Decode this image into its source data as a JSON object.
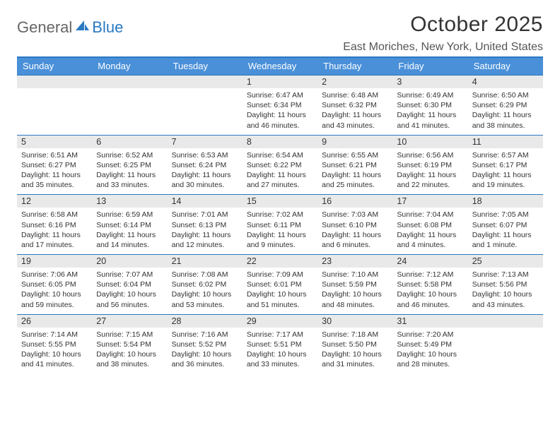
{
  "logo": {
    "gen": "General",
    "blue": "Blue",
    "mark_color": "#2a79c3"
  },
  "title": "October 2025",
  "location": "East Moriches, New York, United States",
  "colors": {
    "header_bar": "#4a90d9",
    "header_text": "#ffffff",
    "daynum_bg": "#e9e9e9",
    "rule": "#2a79c3",
    "body_text": "#333333"
  },
  "dow": [
    "Sunday",
    "Monday",
    "Tuesday",
    "Wednesday",
    "Thursday",
    "Friday",
    "Saturday"
  ],
  "weeks": [
    [
      {
        "n": "",
        "sr": "",
        "ss": "",
        "dl": ""
      },
      {
        "n": "",
        "sr": "",
        "ss": "",
        "dl": ""
      },
      {
        "n": "",
        "sr": "",
        "ss": "",
        "dl": ""
      },
      {
        "n": "1",
        "sr": "Sunrise: 6:47 AM",
        "ss": "Sunset: 6:34 PM",
        "dl": "Daylight: 11 hours and 46 minutes."
      },
      {
        "n": "2",
        "sr": "Sunrise: 6:48 AM",
        "ss": "Sunset: 6:32 PM",
        "dl": "Daylight: 11 hours and 43 minutes."
      },
      {
        "n": "3",
        "sr": "Sunrise: 6:49 AM",
        "ss": "Sunset: 6:30 PM",
        "dl": "Daylight: 11 hours and 41 minutes."
      },
      {
        "n": "4",
        "sr": "Sunrise: 6:50 AM",
        "ss": "Sunset: 6:29 PM",
        "dl": "Daylight: 11 hours and 38 minutes."
      }
    ],
    [
      {
        "n": "5",
        "sr": "Sunrise: 6:51 AM",
        "ss": "Sunset: 6:27 PM",
        "dl": "Daylight: 11 hours and 35 minutes."
      },
      {
        "n": "6",
        "sr": "Sunrise: 6:52 AM",
        "ss": "Sunset: 6:25 PM",
        "dl": "Daylight: 11 hours and 33 minutes."
      },
      {
        "n": "7",
        "sr": "Sunrise: 6:53 AM",
        "ss": "Sunset: 6:24 PM",
        "dl": "Daylight: 11 hours and 30 minutes."
      },
      {
        "n": "8",
        "sr": "Sunrise: 6:54 AM",
        "ss": "Sunset: 6:22 PM",
        "dl": "Daylight: 11 hours and 27 minutes."
      },
      {
        "n": "9",
        "sr": "Sunrise: 6:55 AM",
        "ss": "Sunset: 6:21 PM",
        "dl": "Daylight: 11 hours and 25 minutes."
      },
      {
        "n": "10",
        "sr": "Sunrise: 6:56 AM",
        "ss": "Sunset: 6:19 PM",
        "dl": "Daylight: 11 hours and 22 minutes."
      },
      {
        "n": "11",
        "sr": "Sunrise: 6:57 AM",
        "ss": "Sunset: 6:17 PM",
        "dl": "Daylight: 11 hours and 19 minutes."
      }
    ],
    [
      {
        "n": "12",
        "sr": "Sunrise: 6:58 AM",
        "ss": "Sunset: 6:16 PM",
        "dl": "Daylight: 11 hours and 17 minutes."
      },
      {
        "n": "13",
        "sr": "Sunrise: 6:59 AM",
        "ss": "Sunset: 6:14 PM",
        "dl": "Daylight: 11 hours and 14 minutes."
      },
      {
        "n": "14",
        "sr": "Sunrise: 7:01 AM",
        "ss": "Sunset: 6:13 PM",
        "dl": "Daylight: 11 hours and 12 minutes."
      },
      {
        "n": "15",
        "sr": "Sunrise: 7:02 AM",
        "ss": "Sunset: 6:11 PM",
        "dl": "Daylight: 11 hours and 9 minutes."
      },
      {
        "n": "16",
        "sr": "Sunrise: 7:03 AM",
        "ss": "Sunset: 6:10 PM",
        "dl": "Daylight: 11 hours and 6 minutes."
      },
      {
        "n": "17",
        "sr": "Sunrise: 7:04 AM",
        "ss": "Sunset: 6:08 PM",
        "dl": "Daylight: 11 hours and 4 minutes."
      },
      {
        "n": "18",
        "sr": "Sunrise: 7:05 AM",
        "ss": "Sunset: 6:07 PM",
        "dl": "Daylight: 11 hours and 1 minute."
      }
    ],
    [
      {
        "n": "19",
        "sr": "Sunrise: 7:06 AM",
        "ss": "Sunset: 6:05 PM",
        "dl": "Daylight: 10 hours and 59 minutes."
      },
      {
        "n": "20",
        "sr": "Sunrise: 7:07 AM",
        "ss": "Sunset: 6:04 PM",
        "dl": "Daylight: 10 hours and 56 minutes."
      },
      {
        "n": "21",
        "sr": "Sunrise: 7:08 AM",
        "ss": "Sunset: 6:02 PM",
        "dl": "Daylight: 10 hours and 53 minutes."
      },
      {
        "n": "22",
        "sr": "Sunrise: 7:09 AM",
        "ss": "Sunset: 6:01 PM",
        "dl": "Daylight: 10 hours and 51 minutes."
      },
      {
        "n": "23",
        "sr": "Sunrise: 7:10 AM",
        "ss": "Sunset: 5:59 PM",
        "dl": "Daylight: 10 hours and 48 minutes."
      },
      {
        "n": "24",
        "sr": "Sunrise: 7:12 AM",
        "ss": "Sunset: 5:58 PM",
        "dl": "Daylight: 10 hours and 46 minutes."
      },
      {
        "n": "25",
        "sr": "Sunrise: 7:13 AM",
        "ss": "Sunset: 5:56 PM",
        "dl": "Daylight: 10 hours and 43 minutes."
      }
    ],
    [
      {
        "n": "26",
        "sr": "Sunrise: 7:14 AM",
        "ss": "Sunset: 5:55 PM",
        "dl": "Daylight: 10 hours and 41 minutes."
      },
      {
        "n": "27",
        "sr": "Sunrise: 7:15 AM",
        "ss": "Sunset: 5:54 PM",
        "dl": "Daylight: 10 hours and 38 minutes."
      },
      {
        "n": "28",
        "sr": "Sunrise: 7:16 AM",
        "ss": "Sunset: 5:52 PM",
        "dl": "Daylight: 10 hours and 36 minutes."
      },
      {
        "n": "29",
        "sr": "Sunrise: 7:17 AM",
        "ss": "Sunset: 5:51 PM",
        "dl": "Daylight: 10 hours and 33 minutes."
      },
      {
        "n": "30",
        "sr": "Sunrise: 7:18 AM",
        "ss": "Sunset: 5:50 PM",
        "dl": "Daylight: 10 hours and 31 minutes."
      },
      {
        "n": "31",
        "sr": "Sunrise: 7:20 AM",
        "ss": "Sunset: 5:49 PM",
        "dl": "Daylight: 10 hours and 28 minutes."
      },
      {
        "n": "",
        "sr": "",
        "ss": "",
        "dl": ""
      }
    ]
  ]
}
